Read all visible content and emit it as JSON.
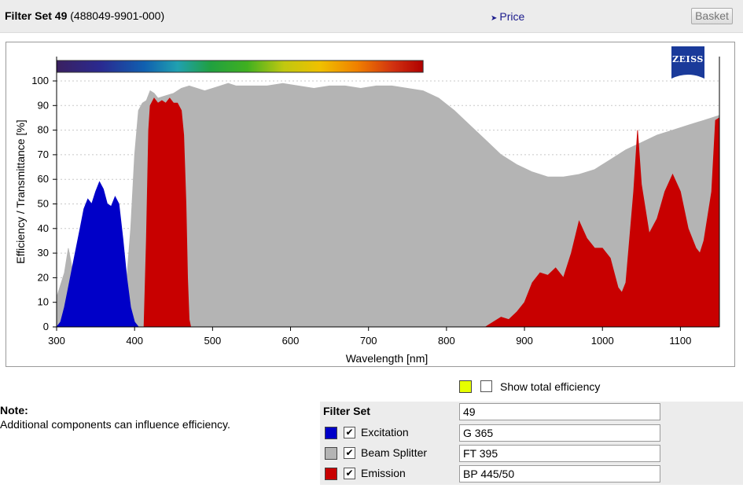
{
  "header": {
    "title_bold": "Filter Set 49",
    "title_rest": " (488049-9901-000)",
    "price_label": "Price",
    "basket_label": "Basket"
  },
  "logo": {
    "text": "ZEISS"
  },
  "chart_data": {
    "type": "area",
    "xlabel": "Wavelength [nm]",
    "ylabel": "Efficiency / Transmittance [%]",
    "xlim": [
      300,
      1150
    ],
    "ylim": [
      0,
      100
    ],
    "xticks": [
      300,
      400,
      500,
      600,
      700,
      800,
      900,
      1000,
      1100
    ],
    "yticks": [
      0,
      10,
      20,
      30,
      40,
      50,
      60,
      70,
      80,
      90,
      100
    ],
    "grid": true,
    "spectrum_bar": {
      "x_range": [
        300,
        770
      ]
    },
    "series": [
      {
        "name": "Beam Splitter",
        "color": "#b4b4b4",
        "points": [
          [
            300,
            12
          ],
          [
            310,
            22
          ],
          [
            315,
            32
          ],
          [
            320,
            24
          ],
          [
            330,
            20
          ],
          [
            340,
            18
          ],
          [
            350,
            15
          ],
          [
            360,
            12
          ],
          [
            370,
            10
          ],
          [
            380,
            8
          ],
          [
            385,
            6
          ],
          [
            390,
            20
          ],
          [
            395,
            40
          ],
          [
            400,
            70
          ],
          [
            405,
            88
          ],
          [
            410,
            91
          ],
          [
            415,
            92
          ],
          [
            420,
            96
          ],
          [
            425,
            95
          ],
          [
            430,
            93
          ],
          [
            440,
            94
          ],
          [
            450,
            95
          ],
          [
            460,
            97
          ],
          [
            470,
            98
          ],
          [
            480,
            97
          ],
          [
            490,
            96
          ],
          [
            500,
            97
          ],
          [
            510,
            98
          ],
          [
            520,
            99
          ],
          [
            530,
            98
          ],
          [
            550,
            98
          ],
          [
            570,
            98
          ],
          [
            590,
            99
          ],
          [
            610,
            98
          ],
          [
            630,
            97
          ],
          [
            650,
            98
          ],
          [
            670,
            98
          ],
          [
            690,
            97
          ],
          [
            710,
            98
          ],
          [
            730,
            98
          ],
          [
            750,
            97
          ],
          [
            770,
            96
          ],
          [
            790,
            93
          ],
          [
            810,
            88
          ],
          [
            830,
            82
          ],
          [
            850,
            76
          ],
          [
            870,
            70
          ],
          [
            890,
            66
          ],
          [
            910,
            63
          ],
          [
            930,
            61
          ],
          [
            950,
            61
          ],
          [
            970,
            62
          ],
          [
            990,
            64
          ],
          [
            1010,
            68
          ],
          [
            1030,
            72
          ],
          [
            1050,
            75
          ],
          [
            1070,
            78
          ],
          [
            1090,
            80
          ],
          [
            1110,
            82
          ],
          [
            1130,
            84
          ],
          [
            1150,
            86
          ]
        ]
      },
      {
        "name": "Excitation",
        "color": "#0000c8",
        "points": [
          [
            300,
            0
          ],
          [
            305,
            2
          ],
          [
            310,
            8
          ],
          [
            315,
            16
          ],
          [
            320,
            24
          ],
          [
            325,
            32
          ],
          [
            330,
            40
          ],
          [
            335,
            48
          ],
          [
            340,
            52
          ],
          [
            345,
            50
          ],
          [
            350,
            55
          ],
          [
            355,
            59
          ],
          [
            360,
            56
          ],
          [
            365,
            50
          ],
          [
            370,
            49
          ],
          [
            375,
            53
          ],
          [
            380,
            50
          ],
          [
            385,
            36
          ],
          [
            390,
            20
          ],
          [
            395,
            8
          ],
          [
            400,
            2
          ],
          [
            405,
            0
          ]
        ]
      },
      {
        "name": "Emission",
        "color": "#c80000",
        "points": [
          [
            412,
            0
          ],
          [
            415,
            35
          ],
          [
            418,
            80
          ],
          [
            420,
            90
          ],
          [
            425,
            93
          ],
          [
            430,
            91
          ],
          [
            435,
            92
          ],
          [
            440,
            91
          ],
          [
            445,
            93
          ],
          [
            450,
            91
          ],
          [
            455,
            91
          ],
          [
            460,
            88
          ],
          [
            463,
            78
          ],
          [
            466,
            50
          ],
          [
            468,
            20
          ],
          [
            470,
            3
          ],
          [
            472,
            0
          ],
          [
            850,
            0
          ],
          [
            860,
            2
          ],
          [
            870,
            4
          ],
          [
            880,
            3
          ],
          [
            890,
            6
          ],
          [
            900,
            10
          ],
          [
            910,
            18
          ],
          [
            920,
            22
          ],
          [
            930,
            21
          ],
          [
            940,
            24
          ],
          [
            950,
            20
          ],
          [
            960,
            30
          ],
          [
            970,
            43
          ],
          [
            980,
            36
          ],
          [
            990,
            32
          ],
          [
            1000,
            32
          ],
          [
            1010,
            28
          ],
          [
            1020,
            16
          ],
          [
            1025,
            14
          ],
          [
            1030,
            18
          ],
          [
            1040,
            55
          ],
          [
            1045,
            80
          ],
          [
            1050,
            58
          ],
          [
            1060,
            38
          ],
          [
            1070,
            44
          ],
          [
            1080,
            55
          ],
          [
            1090,
            62
          ],
          [
            1100,
            55
          ],
          [
            1110,
            40
          ],
          [
            1120,
            32
          ],
          [
            1125,
            30
          ],
          [
            1130,
            35
          ],
          [
            1140,
            55
          ],
          [
            1145,
            84
          ],
          [
            1150,
            85
          ]
        ]
      }
    ]
  },
  "show_total": {
    "label": "Show total efficiency",
    "swatch_color": "#e6ff00",
    "checked": false
  },
  "note": {
    "title": "Note:",
    "text": "Additional components can influence efficiency."
  },
  "filter_set": {
    "header_label": "Filter Set",
    "value": "49",
    "components": [
      {
        "label": "Excitation",
        "value": "G 365",
        "color": "#0000c8",
        "checked": true
      },
      {
        "label": "Beam Splitter",
        "value": "FT 395",
        "color": "#b4b4b4",
        "checked": true
      },
      {
        "label": "Emission",
        "value": "BP 445/50",
        "color": "#c80000",
        "checked": true
      }
    ]
  }
}
